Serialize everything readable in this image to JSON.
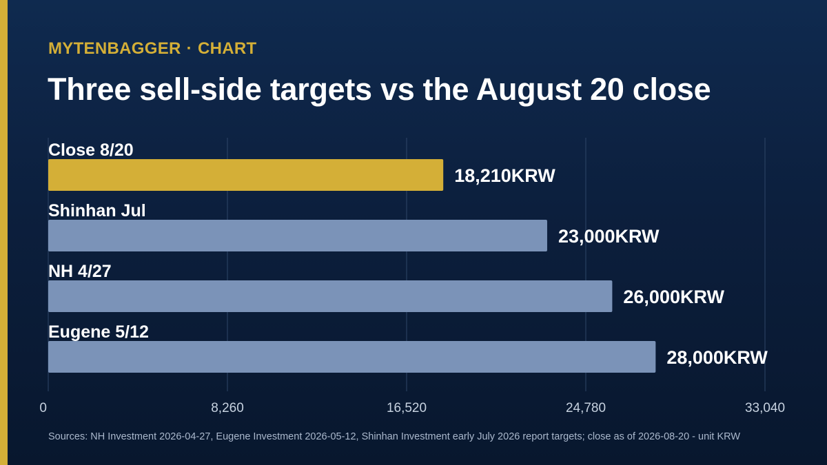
{
  "header": {
    "brand": "MYTENBAGGER",
    "separator": "·",
    "section": "CHART"
  },
  "chart_data": {
    "type": "bar",
    "orientation": "horizontal",
    "title": "Three sell-side targets vs the August 20 close",
    "categories": [
      "Close 8/20",
      "Shinhan Jul",
      "NH 4/27",
      "Eugene 5/12"
    ],
    "values": [
      18210,
      23000,
      26000,
      28000
    ],
    "value_labels": [
      "18,210KRW",
      "23,000KRW",
      "26,000KRW",
      "28,000KRW"
    ],
    "xlim": [
      0,
      33040
    ],
    "x_ticks": [
      0,
      8260,
      16520,
      24780,
      33040
    ],
    "x_tick_labels": [
      "0",
      "8,260",
      "16,520",
      "24,780",
      "33,040"
    ],
    "grid": true,
    "colors": {
      "highlight": "#d4af37",
      "bar": "#7b93b8",
      "grid": "#2e4668",
      "label": "#ffffff",
      "tick": "#c7d2e0"
    }
  },
  "footer": {
    "source": "Sources: NH Investment 2026-04-27, Eugene Investment 2026-05-12, Shinhan Investment early July 2026 report targets; close as of 2026-08-20 - unit KRW"
  }
}
